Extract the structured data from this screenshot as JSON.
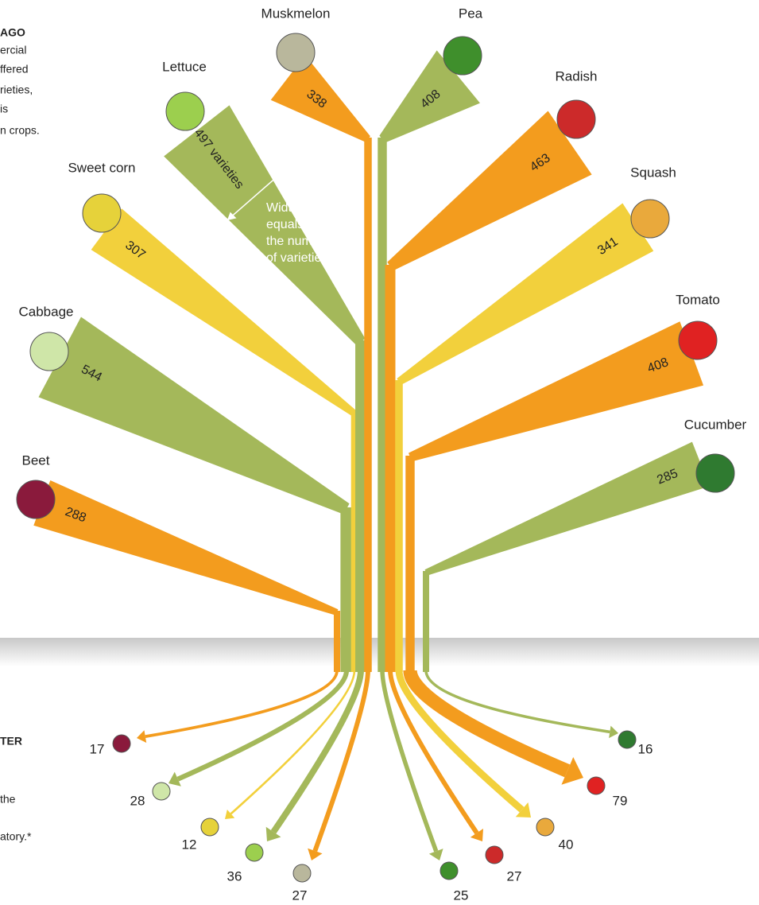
{
  "chart_data": {
    "type": "tree",
    "categories": [
      "Beet",
      "Cabbage",
      "Sweet corn",
      "Lettuce",
      "Muskmelon",
      "Pea",
      "Radish",
      "Squash",
      "Tomato",
      "Cucumber"
    ],
    "values": [
      288,
      544,
      307,
      497,
      338,
      408,
      463,
      341,
      408,
      285
    ],
    "value_labels": [
      "288",
      "544",
      "307",
      "497 varieties",
      "338",
      "408",
      "463",
      "341",
      "408",
      "285"
    ],
    "after_values": [
      17,
      28,
      12,
      36,
      27,
      25,
      27,
      40,
      79,
      16
    ],
    "colors": [
      "#f39c1e",
      "#a4b85a",
      "#f2d03c",
      "#a4b85a",
      "#f39c1e",
      "#a4b85a",
      "#f39c1e",
      "#f2d03c",
      "#f39c1e",
      "#a4b85a"
    ],
    "icon_colors": [
      "#8a1a3c",
      "#cfe6a8",
      "#e6d23a",
      "#9ccf4e",
      "#b9b79c",
      "#3f8f2c",
      "#cc2a2a",
      "#e9a93c",
      "#e02222",
      "#2f7a30"
    ],
    "annotation_lines": [
      "Width",
      "equals",
      "the number",
      "of varieties"
    ],
    "side_text_top": [
      "AGO",
      "ercial",
      "ffered",
      "rieties,",
      "is",
      "n crops."
    ],
    "side_text_bottom": [
      "TER",
      "the",
      "atory.*"
    ]
  }
}
